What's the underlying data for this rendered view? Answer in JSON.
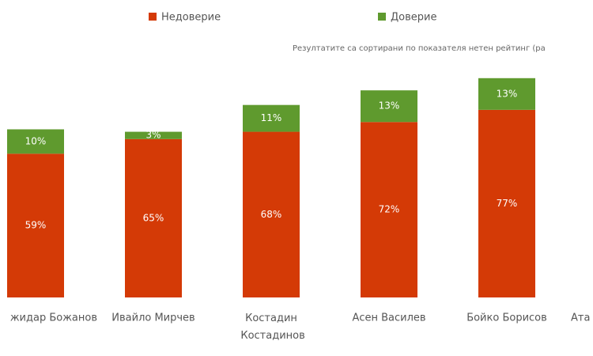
{
  "chart_data": {
    "type": "stacked-bar",
    "subtitle": "Резултатите са сортирани по показателя нетен рейтинг (ра",
    "categories": [
      "жидар Божанов",
      "Ивайло Мирчев",
      "Костадин Костадинов",
      "Асен Василев",
      "Бойко Борисов",
      "Ата"
    ],
    "series": [
      {
        "name": "Недоверие",
        "color": "#d43a06",
        "values": [
          59,
          65,
          68,
          72,
          77,
          null
        ],
        "value_labels": [
          "59%",
          "65%",
          "68%",
          "72%",
          "77%",
          null
        ]
      },
      {
        "name": "Доверие",
        "color": "#5f9a2e",
        "values": [
          10,
          3,
          11,
          13,
          13,
          null
        ],
        "value_labels": [
          "10%",
          "3%",
          "11%",
          "13%",
          "13%",
          null
        ]
      }
    ]
  }
}
